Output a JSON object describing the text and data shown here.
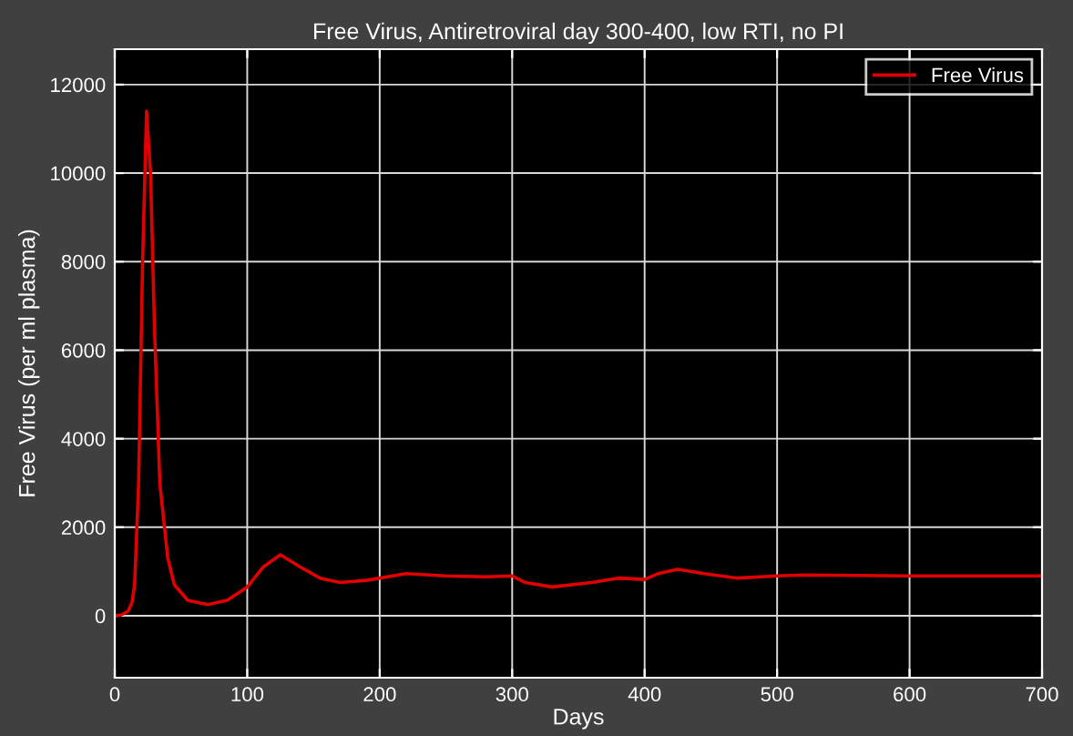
{
  "chart_data": {
    "type": "line",
    "title": "Free Virus, Antiretroviral day 300-400, low RTI, no PI",
    "xlabel": "Days",
    "ylabel": "Free Virus (per ml plasma)",
    "series": [
      {
        "name": "Free Virus",
        "color": "#e00000",
        "x": [
          0,
          5,
          10,
          13,
          15,
          18,
          21,
          24,
          27,
          30,
          34,
          40,
          45,
          55,
          70,
          85,
          100,
          112,
          125,
          140,
          155,
          170,
          190,
          220,
          250,
          280,
          300,
          310,
          330,
          360,
          380,
          400,
          410,
          425,
          445,
          470,
          500,
          520,
          600,
          700
        ],
        "values": [
          0,
          20,
          100,
          300,
          700,
          3000,
          8000,
          11400,
          10000,
          6500,
          3000,
          1300,
          700,
          350,
          250,
          350,
          650,
          1100,
          1380,
          1100,
          850,
          750,
          800,
          950,
          900,
          880,
          900,
          750,
          650,
          750,
          850,
          820,
          950,
          1050,
          950,
          850,
          900,
          920,
          900,
          900
        ]
      }
    ],
    "xlim": [
      0,
      700
    ],
    "xticks": [
      0,
      100,
      200,
      300,
      400,
      500,
      600,
      700
    ],
    "ylim": [
      -1400,
      12800
    ],
    "yticks": [
      0,
      2000,
      4000,
      6000,
      8000,
      10000,
      12000
    ],
    "grid": true,
    "legend": "top right",
    "line_style": "solid",
    "marker": "none"
  }
}
